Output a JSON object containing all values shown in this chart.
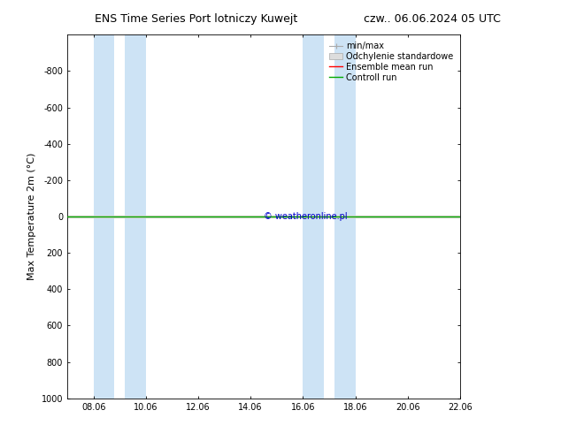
{
  "title_left": "ENS Time Series Port lotniczy Kuwejt",
  "title_right": "czw.. 06.06.2024 05 UTC",
  "ylabel": "Max Temperature 2m (°C)",
  "ylim_top": -1000,
  "ylim_bottom": 1000,
  "yticks": [
    -800,
    -600,
    -400,
    -200,
    0,
    200,
    400,
    600,
    800,
    1000
  ],
  "xlim": [
    0,
    15
  ],
  "xtick_positions": [
    1,
    3,
    5,
    7,
    9,
    11,
    13,
    15
  ],
  "xtick_labels": [
    "08.06",
    "10.06",
    "12.06",
    "14.06",
    "16.06",
    "18.06",
    "20.06",
    "22.06"
  ],
  "shaded_bands": [
    [
      1.0,
      1.8
    ],
    [
      2.2,
      3.0
    ],
    [
      9.0,
      9.8
    ],
    [
      10.2,
      11.0
    ]
  ],
  "shade_color": "#cde3f5",
  "control_run_color": "#00aa00",
  "ensemble_mean_color": "#ff0000",
  "minmax_color": "#aaaaaa",
  "std_dev_color": "#dddddd",
  "watermark_text": "© weatheronline.pl",
  "watermark_color": "#0000cc",
  "background_color": "#ffffff",
  "legend_entries": [
    "min/max",
    "Odchylenie standardowe",
    "Ensemble mean run",
    "Controll run"
  ],
  "legend_colors": [
    "#aaaaaa",
    "#dddddd",
    "#ff0000",
    "#00aa00"
  ],
  "title_fontsize": 9,
  "tick_fontsize": 7,
  "ylabel_fontsize": 8,
  "legend_fontsize": 7
}
